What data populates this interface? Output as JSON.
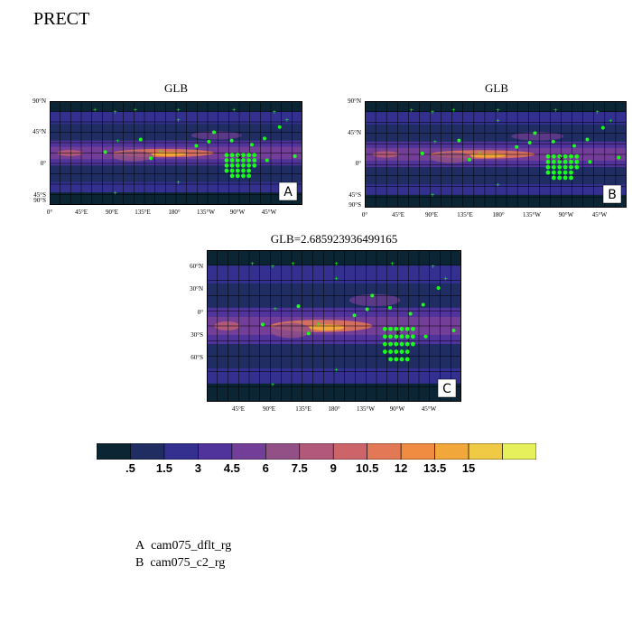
{
  "title": "PRECT",
  "panels": [
    {
      "id": "A",
      "title": "GLB",
      "label": "A",
      "yticks": [
        "90°N",
        "45°N",
        "0°",
        "45°S",
        "90°S"
      ],
      "xticks": [
        "0°",
        "45°E",
        "90°E",
        "135°E",
        "180°",
        "135°W",
        "90°W",
        "45°W"
      ]
    },
    {
      "id": "B",
      "title": "GLB",
      "label": "B",
      "yticks": [
        "90°N",
        "45°N",
        "0°",
        "45°S",
        "90°S"
      ],
      "xticks": [
        "0°",
        "45°E",
        "90°E",
        "135°E",
        "180°",
        "135°W",
        "90°W",
        "45°W"
      ]
    },
    {
      "id": "C",
      "title": "GLB=2.685923936499165",
      "label": "C",
      "yticks": [
        "60°N",
        "30°N",
        "0°",
        "30°S",
        "60°S"
      ],
      "xticks": [
        "45°E",
        "90°E",
        "135°E",
        "180°",
        "135°W",
        "90°W",
        "45°W"
      ]
    }
  ],
  "chart_data": {
    "type": "heatmap",
    "variable": "PRECT",
    "colorbar": {
      "colors": [
        "#0b2535",
        "#1f2d63",
        "#33308f",
        "#51349b",
        "#733e97",
        "#935087",
        "#b2587a",
        "#cd6469",
        "#e37856",
        "#ef8c42",
        "#f2a73a",
        "#f0c945",
        "#e5f05a"
      ],
      "levels": [
        ".5",
        "1.5",
        "3",
        "4.5",
        "6",
        "7.5",
        "9",
        "10.5",
        "12",
        "13.5",
        "15"
      ]
    },
    "cases": [
      {
        "letter": "A",
        "name": "cam075_dflt_rg"
      },
      {
        "letter": "B",
        "name": "cam075_c2_rg"
      }
    ],
    "overlay_marker_color": "#19ff19",
    "grid": true
  }
}
